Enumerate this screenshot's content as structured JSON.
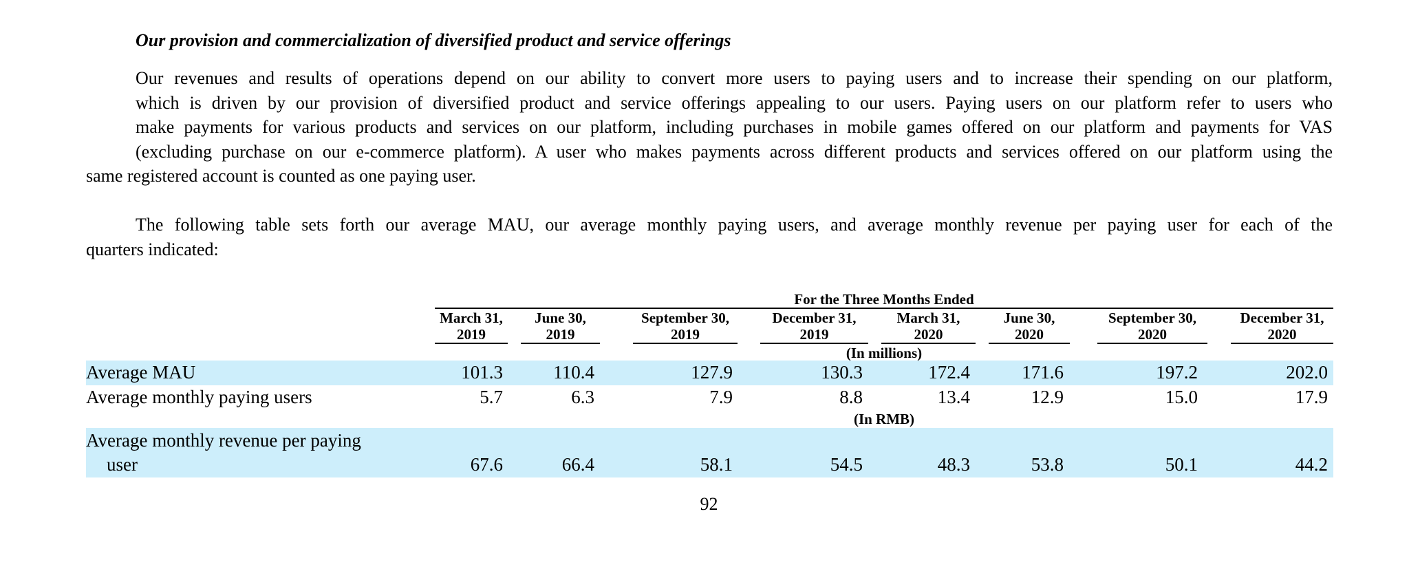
{
  "section_heading": "Our provision and commercialization of diversified product and service offerings",
  "paragraph1_lines": [
    "Our revenues and results of operations depend on our ability to convert more users to paying users and to increase their spending on our platform,",
    "which is driven by our provision of diversified product and service offerings appealing to our users. Paying users on our platform refer to users who",
    "make payments for various products and services on our platform, including purchases in mobile games offered on our platform and payments for VAS",
    "(excluding purchase on our e-commerce platform). A user who makes payments across different products and services offered on our platform using the",
    "same registered account is counted as one paying user."
  ],
  "paragraph2_lines": [
    "The following table sets forth our average MAU, our average monthly paying users, and average monthly revenue per paying user for each of the",
    "quarters indicated:"
  ],
  "table": {
    "group_header": "For the Three Months Ended",
    "columns": [
      {
        "line1": "March 31,",
        "line2": "2019"
      },
      {
        "line1": "June 30,",
        "line2": "2019"
      },
      {
        "line1": "September 30,",
        "line2": "2019"
      },
      {
        "line1": "December 31,",
        "line2": "2019"
      },
      {
        "line1": "March 31,",
        "line2": "2020"
      },
      {
        "line1": "June 30,",
        "line2": "2020"
      },
      {
        "line1": "September 30,",
        "line2": "2020"
      },
      {
        "line1": "December 31,",
        "line2": "2020"
      }
    ],
    "unit_millions": "(In millions)",
    "unit_rmb": "(In RMB)",
    "rows": [
      {
        "label": "Average MAU",
        "values": [
          "101.3",
          "110.4",
          "127.9",
          "130.3",
          "172.4",
          "171.6",
          "197.2",
          "202.0"
        ]
      },
      {
        "label": "Average monthly paying users",
        "values": [
          "5.7",
          "6.3",
          "7.9",
          "8.8",
          "13.4",
          "12.9",
          "15.0",
          "17.9"
        ]
      },
      {
        "label_line1": "Average monthly revenue per paying",
        "label_line2": "user",
        "values": [
          "67.6",
          "66.4",
          "58.1",
          "54.5",
          "48.3",
          "53.8",
          "50.1",
          "44.2"
        ]
      }
    ]
  },
  "page_number": "92"
}
